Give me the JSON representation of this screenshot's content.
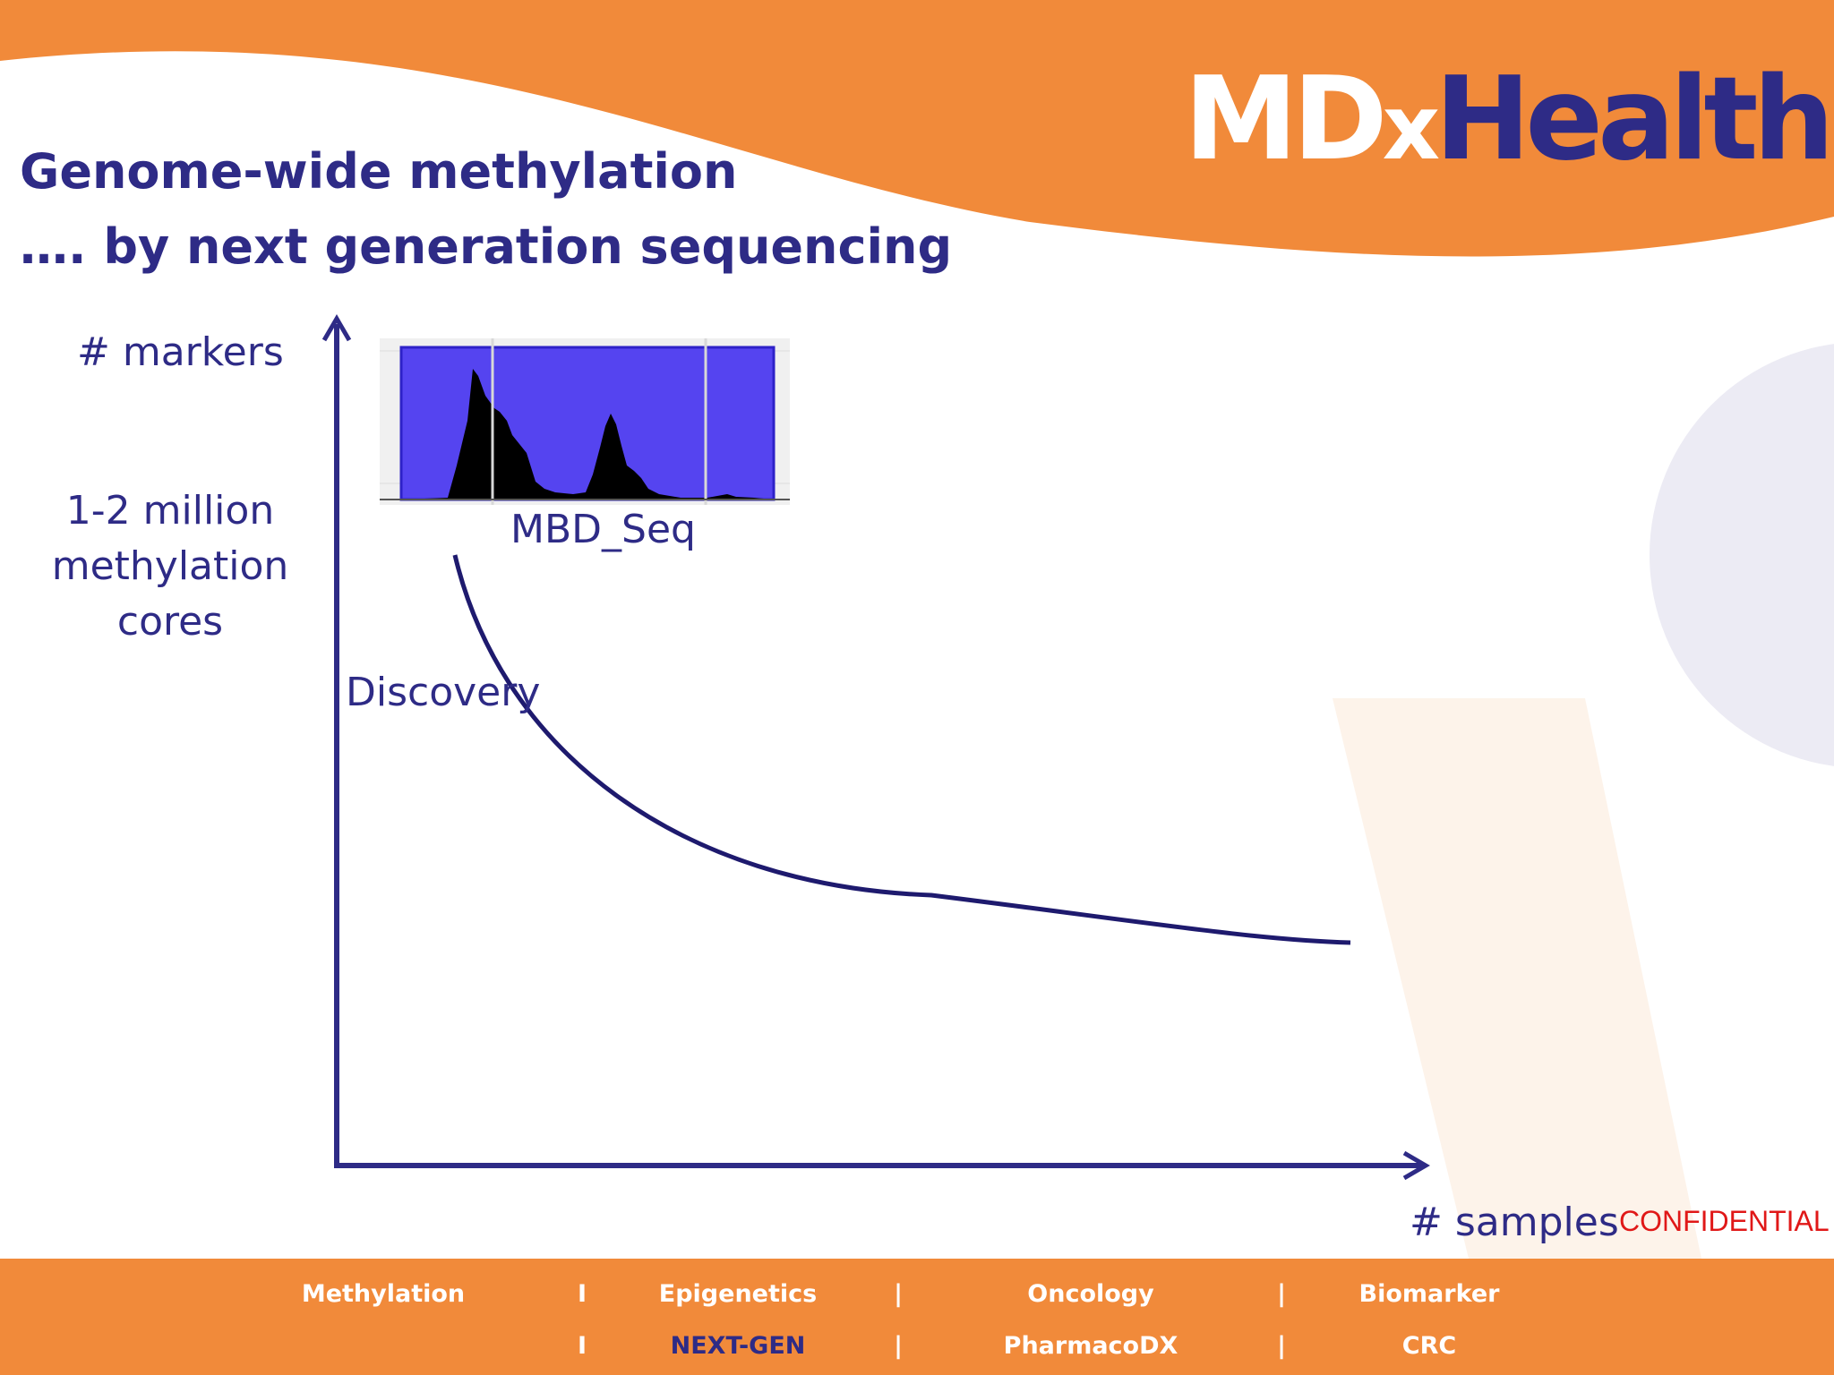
{
  "logo": {
    "md": "MD",
    "x": "x",
    "health": "Health"
  },
  "title": {
    "line1": "Genome-wide methylation",
    "line2": "…. by next generation sequencing"
  },
  "axes": {
    "y_label": "# markers",
    "x_label": "# samples"
  },
  "annotation": {
    "lines": [
      "1-2 million",
      "methylation",
      "cores"
    ]
  },
  "inset_label": "MBD_Seq",
  "curve_label": "Discovery",
  "confidential": "CONFIDENTIAL",
  "footer": {
    "row1": [
      "Methylation",
      "I",
      "Epigenetics",
      "|",
      "Oncology",
      "|",
      "Biomarker"
    ],
    "row2": [
      "I",
      "NEXT-GEN",
      "|",
      "PharmacoDX",
      "|",
      "CRC"
    ],
    "highlight": "NEXT-GEN"
  },
  "colors": {
    "orange": "#f18a3a",
    "navy": "#2e2b86",
    "inset_blue": "#5544f0",
    "confidential": "#e01818"
  }
}
